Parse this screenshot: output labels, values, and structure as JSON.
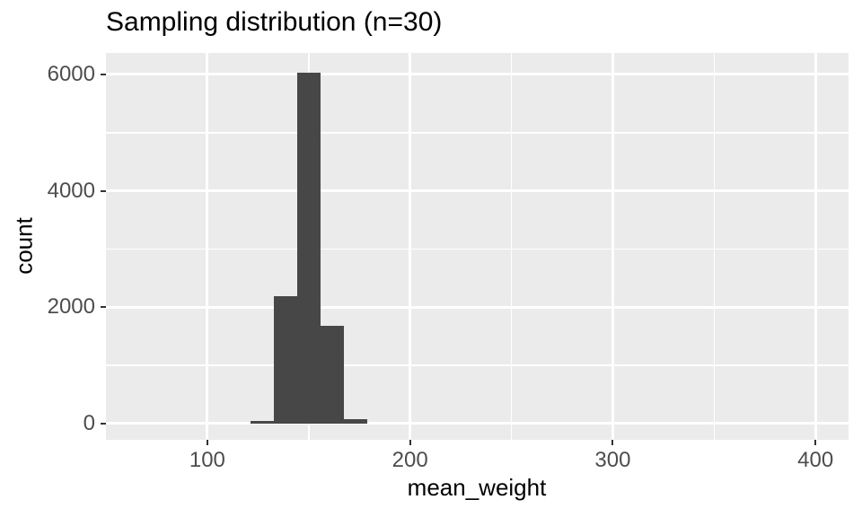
{
  "title": "Sampling distribution (n=30)",
  "axes": {
    "x_label": "mean_weight",
    "y_label": "count"
  },
  "chart_data": {
    "type": "bar",
    "subtype": "histogram",
    "title": "Sampling distribution (n=30)",
    "xlabel": "mean_weight",
    "ylabel": "count",
    "x_tick_values": [
      100,
      200,
      300,
      400
    ],
    "x_tick_labels": [
      "100",
      "200",
      "300",
      "400"
    ],
    "x_minor_gridlines": [
      150,
      250,
      350
    ],
    "y_tick_values": [
      0,
      2000,
      4000,
      6000
    ],
    "y_tick_labels": [
      "0",
      "2000",
      "4000",
      "6000"
    ],
    "y_minor_gridlines": [
      1000,
      3000,
      5000
    ],
    "x_range": [
      50,
      416.3
    ],
    "y_range": [
      -278,
      6370
    ],
    "grid": true,
    "legend": "none",
    "bin_width": 11.5,
    "bins": [
      {
        "x0": 121.25,
        "x1": 132.75,
        "count": 40
      },
      {
        "x0": 132.75,
        "x1": 144.25,
        "count": 2190
      },
      {
        "x0": 144.25,
        "x1": 155.75,
        "count": 6030
      },
      {
        "x0": 155.75,
        "x1": 167.25,
        "count": 1680
      },
      {
        "x0": 167.25,
        "x1": 178.75,
        "count": 70
      }
    ],
    "colors": {
      "bar_fill": "#474747",
      "panel_background": "#EBEBEB",
      "gridline": "#FFFFFF",
      "tick_mark": "#333333",
      "tick_label": "#4D4D4D",
      "title_text": "#000000"
    }
  }
}
